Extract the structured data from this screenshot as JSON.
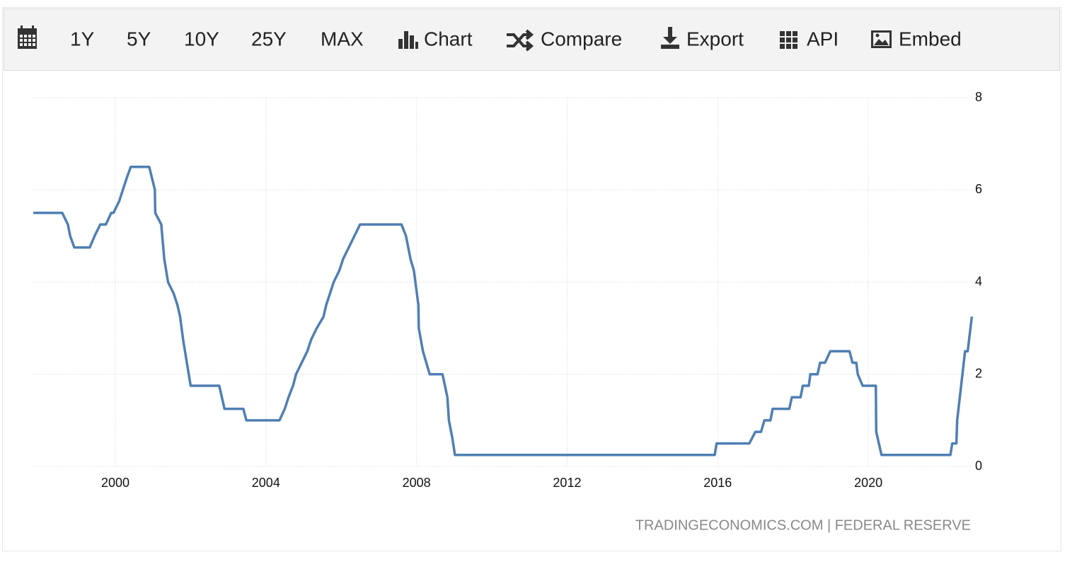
{
  "toolbar": [
    "1Y",
    "5Y",
    "10Y",
    "25Y",
    "MAX",
    "Chart",
    "Compare",
    "Export",
    "API",
    "Embed"
  ],
  "source": "TRADINGECONOMICS.COM | FEDERAL RESERVE",
  "chart_data": {
    "type": "line",
    "color": "#4f7fb3",
    "grid": true,
    "x": [
      1997.82,
      1998.59,
      1998.74,
      1998.8,
      1998.91,
      1999.32,
      1999.45,
      1999.6,
      1999.75,
      1999.89,
      1999.95,
      2000.1,
      2000.2,
      2000.3,
      2000.41,
      2000.9,
      2001.05,
      2001.06,
      2001.22,
      2001.3,
      2001.4,
      2001.55,
      2001.65,
      2001.72,
      2001.8,
      2001.9,
      2001.95,
      2002.0,
      2002.76,
      2002.9,
      2003.4,
      2003.48,
      2004.36,
      2004.5,
      2004.6,
      2004.72,
      2004.8,
      2004.95,
      2005.1,
      2005.2,
      2005.35,
      2005.53,
      2005.6,
      2005.7,
      2005.8,
      2005.95,
      2006.05,
      2006.2,
      2006.35,
      2006.5,
      2007.6,
      2007.72,
      2007.84,
      2007.93,
      2008.05,
      2008.06,
      2008.17,
      2008.35,
      2008.69,
      2008.82,
      2008.86,
      2008.95,
      2009.02,
      2015.92,
      2015.97,
      2016.84,
      2017.0,
      2017.15,
      2017.24,
      2017.4,
      2017.46,
      2017.9,
      2017.97,
      2018.2,
      2018.26,
      2018.42,
      2018.46,
      2018.65,
      2018.72,
      2018.85,
      2018.99,
      2019.5,
      2019.58,
      2019.68,
      2019.72,
      2019.85,
      2020.2,
      2020.21,
      2020.35,
      2022.18,
      2022.23,
      2022.34,
      2022.36,
      2022.57,
      2022.64,
      2022.75
    ],
    "values": [
      5.5,
      5.5,
      5.25,
      5.0,
      4.75,
      4.75,
      5.0,
      5.25,
      5.25,
      5.5,
      5.5,
      5.75,
      6.0,
      6.25,
      6.5,
      6.5,
      6.0,
      5.5,
      5.25,
      4.5,
      4.0,
      3.75,
      3.5,
      3.25,
      2.75,
      2.25,
      2.0,
      1.75,
      1.75,
      1.25,
      1.25,
      1.0,
      1.0,
      1.25,
      1.5,
      1.75,
      2.0,
      2.25,
      2.5,
      2.75,
      3.0,
      3.25,
      3.5,
      3.75,
      4.0,
      4.25,
      4.5,
      4.75,
      5.0,
      5.25,
      5.25,
      5.0,
      4.5,
      4.25,
      3.5,
      3.0,
      2.5,
      2.0,
      2.0,
      1.5,
      1.0,
      0.625,
      0.25,
      0.25,
      0.5,
      0.5,
      0.75,
      0.75,
      1.0,
      1.0,
      1.25,
      1.25,
      1.5,
      1.5,
      1.75,
      1.75,
      2.0,
      2.0,
      2.25,
      2.25,
      2.5,
      2.5,
      2.25,
      2.25,
      2.0,
      1.75,
      1.75,
      0.75,
      0.25,
      0.25,
      0.5,
      0.5,
      1.0,
      2.5,
      2.5,
      3.25
    ],
    "xlim": [
      1997.82,
      2022.78
    ],
    "xticks": [
      2000,
      2004,
      2008,
      2012,
      2016,
      2020
    ],
    "ylim": [
      0,
      8
    ],
    "yticks": [
      0,
      2,
      4,
      6,
      8
    ]
  }
}
